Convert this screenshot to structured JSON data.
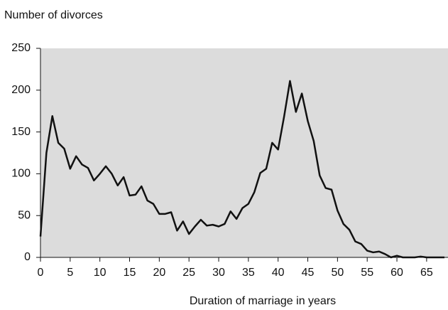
{
  "chart_data": {
    "type": "line",
    "ylabel": "Number of divorces",
    "xlabel": "Duration of marriage in years",
    "x": [
      0,
      1,
      2,
      3,
      4,
      5,
      6,
      7,
      8,
      9,
      10,
      11,
      12,
      13,
      14,
      15,
      16,
      17,
      18,
      19,
      20,
      21,
      22,
      23,
      24,
      25,
      26,
      27,
      28,
      29,
      30,
      31,
      32,
      33,
      34,
      35,
      36,
      37,
      38,
      39,
      40,
      41,
      42,
      43,
      44,
      45,
      46,
      47,
      48,
      49,
      50,
      51,
      52,
      53,
      54,
      55,
      56,
      57,
      58,
      59,
      60,
      61,
      62,
      63,
      64,
      65,
      66,
      67,
      68
    ],
    "series": [
      {
        "color": "#111111",
        "values": [
          25,
          125,
          169,
          137,
          130,
          106,
          121,
          111,
          107,
          92,
          100,
          109,
          100,
          86,
          96,
          74,
          75,
          85,
          68,
          64,
          52,
          52,
          54,
          32,
          43,
          28,
          37,
          45,
          38,
          39,
          37,
          40,
          55,
          46,
          59,
          64,
          78,
          101,
          106,
          137,
          129,
          168,
          211,
          174,
          196,
          163,
          139,
          98,
          83,
          81,
          56,
          40,
          33,
          19,
          16,
          8,
          6,
          7,
          4,
          0,
          2,
          0,
          0,
          0,
          1,
          0,
          0,
          0,
          0
        ]
      }
    ],
    "xlim": [
      0,
      68.6
    ],
    "ylim": [
      0,
      250
    ],
    "xticks": [
      0,
      5,
      10,
      15,
      20,
      25,
      30,
      35,
      40,
      45,
      50,
      55,
      60,
      65
    ],
    "yticks": [
      0,
      50,
      100,
      150,
      200,
      250
    ],
    "background": "#dcdcdc"
  }
}
